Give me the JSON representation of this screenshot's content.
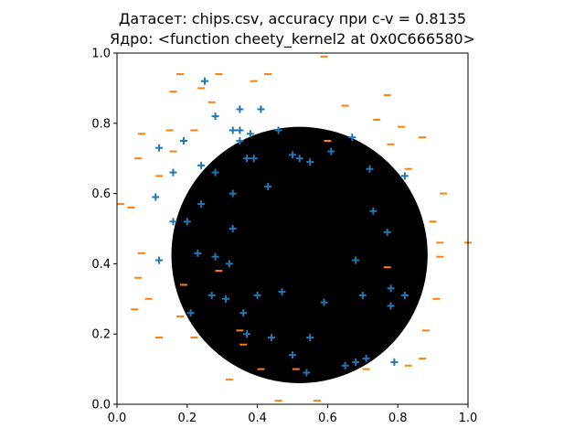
{
  "chart_data": {
    "type": "scatter",
    "title": "Датасет: chips.csv, accuracy при c-v = 0.8135",
    "subtitle": "Ядро: <function cheety_kernel2 at 0x0C666580>",
    "xlim": [
      0.0,
      1.0
    ],
    "ylim": [
      0.0,
      1.0
    ],
    "xticks": [
      "0.0",
      "0.2",
      "0.4",
      "0.6",
      "0.8",
      "1.0"
    ],
    "yticks": [
      "0.0",
      "0.2",
      "0.4",
      "0.6",
      "0.8",
      "1.0"
    ],
    "grid": false,
    "decision_region": {
      "shape": "circle",
      "center": [
        0.52,
        0.425
      ],
      "radius": 0.365,
      "color": "#000000"
    },
    "series": [
      {
        "marker": "+",
        "color": "#1f77b4",
        "points": [
          [
            0.25,
            0.92
          ],
          [
            0.41,
            0.84
          ],
          [
            0.35,
            0.84
          ],
          [
            0.33,
            0.78
          ],
          [
            0.35,
            0.78
          ],
          [
            0.38,
            0.77
          ],
          [
            0.28,
            0.82
          ],
          [
            0.46,
            0.78
          ],
          [
            0.12,
            0.73
          ],
          [
            0.19,
            0.75
          ],
          [
            0.16,
            0.66
          ],
          [
            0.24,
            0.68
          ],
          [
            0.28,
            0.66
          ],
          [
            0.35,
            0.75
          ],
          [
            0.37,
            0.7
          ],
          [
            0.39,
            0.7
          ],
          [
            0.5,
            0.71
          ],
          [
            0.52,
            0.7
          ],
          [
            0.55,
            0.69
          ],
          [
            0.61,
            0.72
          ],
          [
            0.67,
            0.76
          ],
          [
            0.72,
            0.67
          ],
          [
            0.82,
            0.65
          ],
          [
            0.11,
            0.59
          ],
          [
            0.16,
            0.52
          ],
          [
            0.2,
            0.52
          ],
          [
            0.24,
            0.57
          ],
          [
            0.33,
            0.6
          ],
          [
            0.43,
            0.62
          ],
          [
            0.73,
            0.55
          ],
          [
            0.77,
            0.49
          ],
          [
            0.12,
            0.41
          ],
          [
            0.23,
            0.43
          ],
          [
            0.28,
            0.42
          ],
          [
            0.32,
            0.4
          ],
          [
            0.33,
            0.5
          ],
          [
            0.68,
            0.41
          ],
          [
            0.21,
            0.26
          ],
          [
            0.27,
            0.31
          ],
          [
            0.31,
            0.3
          ],
          [
            0.36,
            0.26
          ],
          [
            0.4,
            0.31
          ],
          [
            0.47,
            0.32
          ],
          [
            0.59,
            0.29
          ],
          [
            0.7,
            0.31
          ],
          [
            0.78,
            0.33
          ],
          [
            0.82,
            0.31
          ],
          [
            0.78,
            0.28
          ],
          [
            0.37,
            0.2
          ],
          [
            0.44,
            0.19
          ],
          [
            0.55,
            0.19
          ],
          [
            0.5,
            0.14
          ],
          [
            0.54,
            0.09
          ],
          [
            0.65,
            0.11
          ],
          [
            0.68,
            0.12
          ],
          [
            0.71,
            0.13
          ],
          [
            0.79,
            0.12
          ]
        ]
      },
      {
        "marker": "_",
        "color": "#ff7f0e",
        "points": [
          [
            0.59,
            0.99
          ],
          [
            0.18,
            0.94
          ],
          [
            0.29,
            0.94
          ],
          [
            0.43,
            0.94
          ],
          [
            0.39,
            0.92
          ],
          [
            0.16,
            0.89
          ],
          [
            0.24,
            0.9
          ],
          [
            0.27,
            0.86
          ],
          [
            0.77,
            0.88
          ],
          [
            0.65,
            0.85
          ],
          [
            0.74,
            0.81
          ],
          [
            0.15,
            0.78
          ],
          [
            0.22,
            0.78
          ],
          [
            0.07,
            0.77
          ],
          [
            0.81,
            0.79
          ],
          [
            0.87,
            0.76
          ],
          [
            0.6,
            0.75
          ],
          [
            0.78,
            0.74
          ],
          [
            0.16,
            0.72
          ],
          [
            0.06,
            0.7
          ],
          [
            0.83,
            0.67
          ],
          [
            0.12,
            0.65
          ],
          [
            0.01,
            0.57
          ],
          [
            0.04,
            0.56
          ],
          [
            0.93,
            0.6
          ],
          [
            0.9,
            0.52
          ],
          [
            0.92,
            0.46
          ],
          [
            1.0,
            0.46
          ],
          [
            0.07,
            0.43
          ],
          [
            0.92,
            0.42
          ],
          [
            0.06,
            0.36
          ],
          [
            0.29,
            0.38
          ],
          [
            0.77,
            0.39
          ],
          [
            0.19,
            0.34
          ],
          [
            0.09,
            0.3
          ],
          [
            0.18,
            0.25
          ],
          [
            0.91,
            0.3
          ],
          [
            0.05,
            0.27
          ],
          [
            0.35,
            0.21
          ],
          [
            0.22,
            0.19
          ],
          [
            0.12,
            0.19
          ],
          [
            0.88,
            0.21
          ],
          [
            0.36,
            0.17
          ],
          [
            0.87,
            0.13
          ],
          [
            0.83,
            0.11
          ],
          [
            0.71,
            0.1
          ],
          [
            0.32,
            0.07
          ],
          [
            0.41,
            0.1
          ],
          [
            0.51,
            0.1
          ],
          [
            0.46,
            0.01
          ],
          [
            0.57,
            0.01
          ]
        ]
      }
    ]
  }
}
